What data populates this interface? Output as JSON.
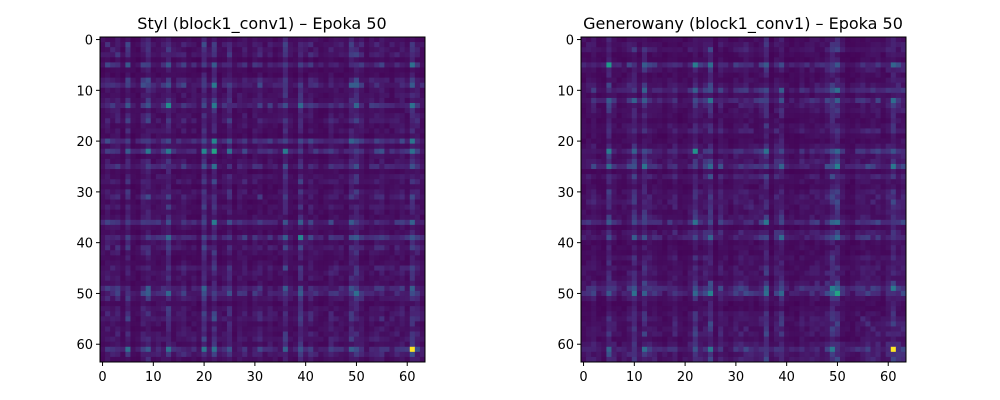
{
  "chart_data": [
    {
      "type": "heatmap",
      "title": "Styl (block1_conv1) – Epoka 50",
      "xlabel": "",
      "ylabel": "",
      "matrix_size": 64,
      "colormap": "viridis",
      "xlim": [
        -0.5,
        63.5
      ],
      "ylim": [
        63.5,
        -0.5
      ],
      "x_ticks": [
        0,
        10,
        20,
        30,
        40,
        50,
        60
      ],
      "y_ticks": [
        0,
        10,
        20,
        30,
        40,
        50,
        60
      ],
      "grid": false,
      "hot_rows_cols": [
        5,
        9,
        13,
        20,
        22,
        25,
        36,
        39,
        49,
        50,
        61
      ],
      "max_cell": [
        61,
        61
      ],
      "seed": 7
    },
    {
      "type": "heatmap",
      "title": "Generowany (block1_conv1) – Epoka 50",
      "xlabel": "",
      "ylabel": "",
      "matrix_size": 64,
      "colormap": "viridis",
      "xlim": [
        -0.5,
        63.5
      ],
      "ylim": [
        63.5,
        -0.5
      ],
      "x_ticks": [
        0,
        10,
        20,
        30,
        40,
        50,
        60
      ],
      "y_ticks": [
        0,
        10,
        20,
        30,
        40,
        50,
        60
      ],
      "grid": false,
      "hot_rows_cols": [
        5,
        10,
        12,
        22,
        25,
        36,
        39,
        49,
        50,
        61
      ],
      "max_cell": [
        61,
        61
      ],
      "seed": 13
    }
  ]
}
